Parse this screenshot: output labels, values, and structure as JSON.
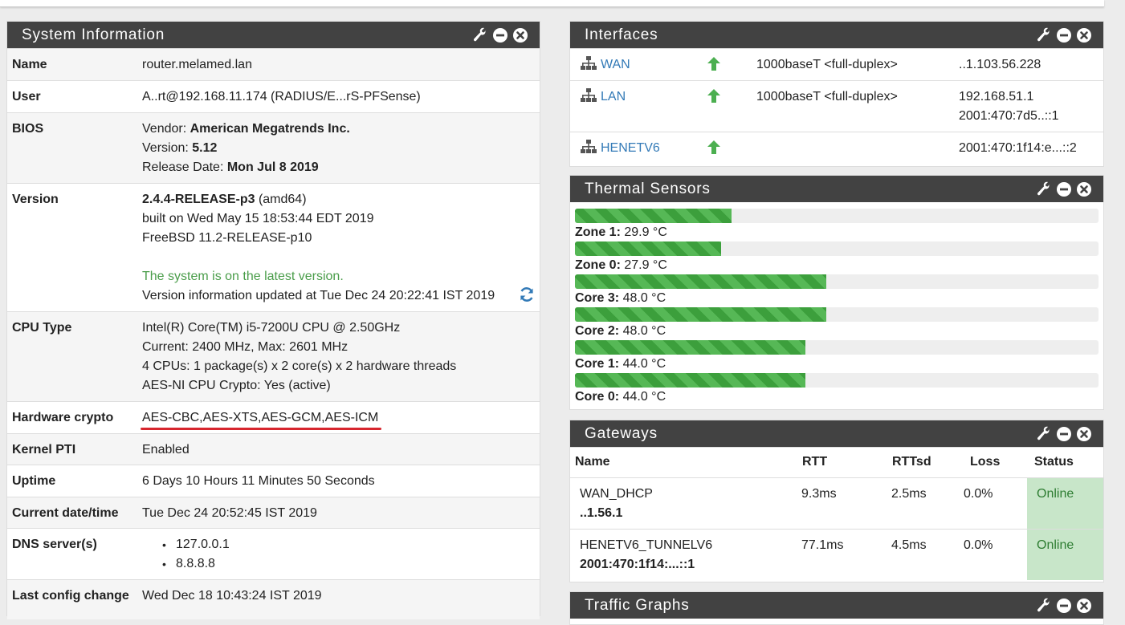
{
  "system": {
    "title": "System Information",
    "rows": {
      "name": {
        "label": "Name",
        "value": "router.melamed.lan"
      },
      "user": {
        "label": "User",
        "value": "A..rt@192.168.11.174 (RADIUS/E...rS-PFSense)"
      },
      "bios": {
        "label": "BIOS",
        "vendor_k": "Vendor:",
        "vendor_v": "American Megatrends Inc.",
        "version_k": "Version:",
        "version_v": "5.12",
        "date_k": "Release Date:",
        "date_v": "Mon Jul 8 2019"
      },
      "version": {
        "label": "Version",
        "release": "2.4.4-RELEASE-p3",
        "arch": "(amd64)",
        "built": "built on Wed May 15 18:53:44 EDT 2019",
        "freebsd": "FreeBSD 11.2-RELEASE-p10",
        "latest": "The system is on the latest version.",
        "updated": "Version information updated at Tue Dec 24 20:22:41 IST 2019"
      },
      "cpu": {
        "label": "CPU Type",
        "l1": "Intel(R) Core(TM) i5-7200U CPU @ 2.50GHz",
        "l2": "Current: 2400 MHz, Max: 2601 MHz",
        "l3": "4 CPUs: 1 package(s) x 2 core(s) x 2 hardware threads",
        "l4": "AES-NI CPU Crypto: Yes (active)"
      },
      "crypto": {
        "label": "Hardware crypto",
        "value": "AES-CBC,AES-XTS,AES-GCM,AES-ICM"
      },
      "pti": {
        "label": "Kernel PTI",
        "value": "Enabled"
      },
      "uptime": {
        "label": "Uptime",
        "value": "6 Days 10 Hours 11 Minutes 50 Seconds"
      },
      "datetime": {
        "label": "Current date/time",
        "value": "Tue Dec 24 20:52:45 IST 2019"
      },
      "dns": {
        "label": "DNS server(s)",
        "servers": [
          "127.0.0.1",
          "8.8.8.8"
        ]
      },
      "lastconfig": {
        "label": "Last config change",
        "value": "Wed Dec 18 10:43:24 IST 2019"
      }
    }
  },
  "interfaces": {
    "title": "Interfaces",
    "items": [
      {
        "name": "WAN",
        "media": "1000baseT <full-duplex>",
        "addr1": "..1.103.56.228",
        "addr2": ""
      },
      {
        "name": "LAN",
        "media": "1000baseT <full-duplex>",
        "addr1": "192.168.51.1",
        "addr2": "2001:470:7d5..::1"
      },
      {
        "name": "HENETV6",
        "media": "",
        "addr1": "2001:470:1f14:e...::2",
        "addr2": ""
      }
    ]
  },
  "thermal": {
    "title": "Thermal Sensors",
    "unit": "°C",
    "sensors": [
      {
        "name": "Zone 1:",
        "value": "29.9 °C",
        "temp": 29.9
      },
      {
        "name": "Zone 0:",
        "value": "27.9 °C",
        "temp": 27.9
      },
      {
        "name": "Core 3:",
        "value": "48.0 °C",
        "temp": 48.0
      },
      {
        "name": "Core 2:",
        "value": "48.0 °C",
        "temp": 48.0
      },
      {
        "name": "Core 1:",
        "value": "44.0 °C",
        "temp": 44.0
      },
      {
        "name": "Core 0:",
        "value": "44.0 °C",
        "temp": 44.0
      }
    ]
  },
  "gateways": {
    "title": "Gateways",
    "headers": {
      "name": "Name",
      "rtt": "RTT",
      "rttsd": "RTTsd",
      "loss": "Loss",
      "status": "Status"
    },
    "rows": [
      {
        "name": "WAN_DHCP",
        "addr": "..1.56.1",
        "rtt": "9.3ms",
        "rttsd": "2.5ms",
        "loss": "0.0%",
        "status": "Online"
      },
      {
        "name": "HENETV6_TUNNELV6",
        "addr": "2001:470:1f14:...::1",
        "rtt": "77.1ms",
        "rttsd": "4.5ms",
        "loss": "0.0%",
        "status": "Online"
      }
    ]
  },
  "traffic": {
    "title": "Traffic Graphs"
  },
  "colors": {
    "header_bg": "#424242",
    "status_online_bg": "#c8e6c9",
    "status_online_fg": "#2e7d32",
    "link": "#337ab7",
    "underline": "#d7262e"
  }
}
